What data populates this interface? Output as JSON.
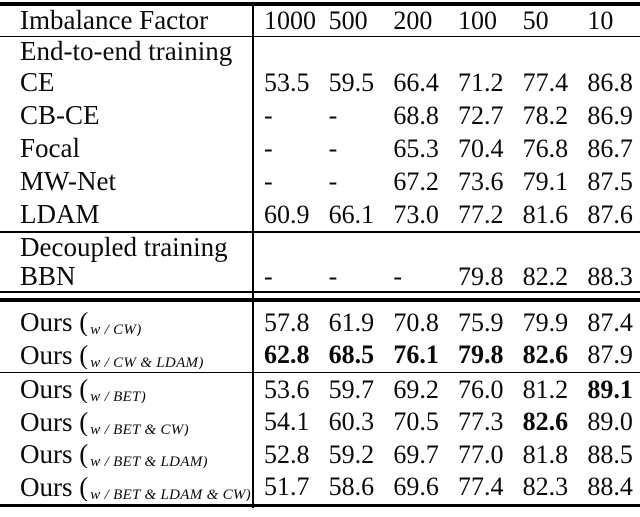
{
  "page": {
    "background": "#ffffff",
    "text_color": "#000000"
  },
  "table": {
    "header": {
      "label": "Imbalance Factor",
      "columns": [
        "1000",
        "500",
        "200",
        "100",
        "50",
        "10"
      ]
    },
    "sections": [
      {
        "title": "End-to-end training",
        "rows": [
          {
            "name": "CE",
            "sub": "",
            "values": [
              "53.5",
              "59.5",
              "66.4",
              "71.2",
              "77.4",
              "86.8"
            ],
            "bold": []
          },
          {
            "name": "CB-CE",
            "sub": "",
            "values": [
              "-",
              "-",
              "68.8",
              "72.7",
              "78.2",
              "86.9"
            ],
            "bold": []
          },
          {
            "name": "Focal",
            "sub": "",
            "values": [
              "-",
              "-",
              "65.3",
              "70.4",
              "76.8",
              "86.7"
            ],
            "bold": []
          },
          {
            "name": "MW-Net",
            "sub": "",
            "values": [
              "-",
              "-",
              "67.2",
              "73.6",
              "79.1",
              "87.5"
            ],
            "bold": []
          },
          {
            "name": "LDAM",
            "sub": "",
            "values": [
              "60.9",
              "66.1",
              "73.0",
              "77.2",
              "81.6",
              "87.6"
            ],
            "bold": []
          }
        ]
      },
      {
        "title": "Decoupled training",
        "rows": [
          {
            "name": "BBN",
            "sub": "",
            "values": [
              "-",
              "-",
              "-",
              "79.8",
              "82.2",
              "88.3"
            ],
            "bold": []
          }
        ]
      },
      {
        "title": "",
        "rows": [
          {
            "name": "Ours (",
            "sub": "w / CW)",
            "values": [
              "57.8",
              "61.9",
              "70.8",
              "75.9",
              "79.9",
              "87.4"
            ],
            "bold": []
          },
          {
            "name": "Ours (",
            "sub": "w / CW & LDAM)",
            "values": [
              "62.8",
              "68.5",
              "76.1",
              "79.8",
              "82.6",
              "87.9"
            ],
            "bold": [
              0,
              1,
              2,
              3,
              4
            ]
          }
        ]
      },
      {
        "title": "",
        "rows": [
          {
            "name": "Ours (",
            "sub": "w / BET)",
            "values": [
              "53.6",
              "59.7",
              "69.2",
              "76.0",
              "81.2",
              "89.1"
            ],
            "bold": [
              5
            ]
          },
          {
            "name": "Ours (",
            "sub": "w / BET & CW)",
            "values": [
              "54.1",
              "60.3",
              "70.5",
              "77.3",
              "82.6",
              "89.0"
            ],
            "bold": [
              4
            ]
          },
          {
            "name": "Ours (",
            "sub": "w / BET & LDAM)",
            "values": [
              "52.8",
              "59.2",
              "69.7",
              "77.0",
              "81.8",
              "88.5"
            ],
            "bold": []
          },
          {
            "name": "Ours (",
            "sub": "w / BET & LDAM & CW)",
            "values": [
              "51.7",
              "58.6",
              "69.6",
              "77.4",
              "82.3",
              "88.4"
            ],
            "bold": []
          }
        ]
      }
    ]
  }
}
